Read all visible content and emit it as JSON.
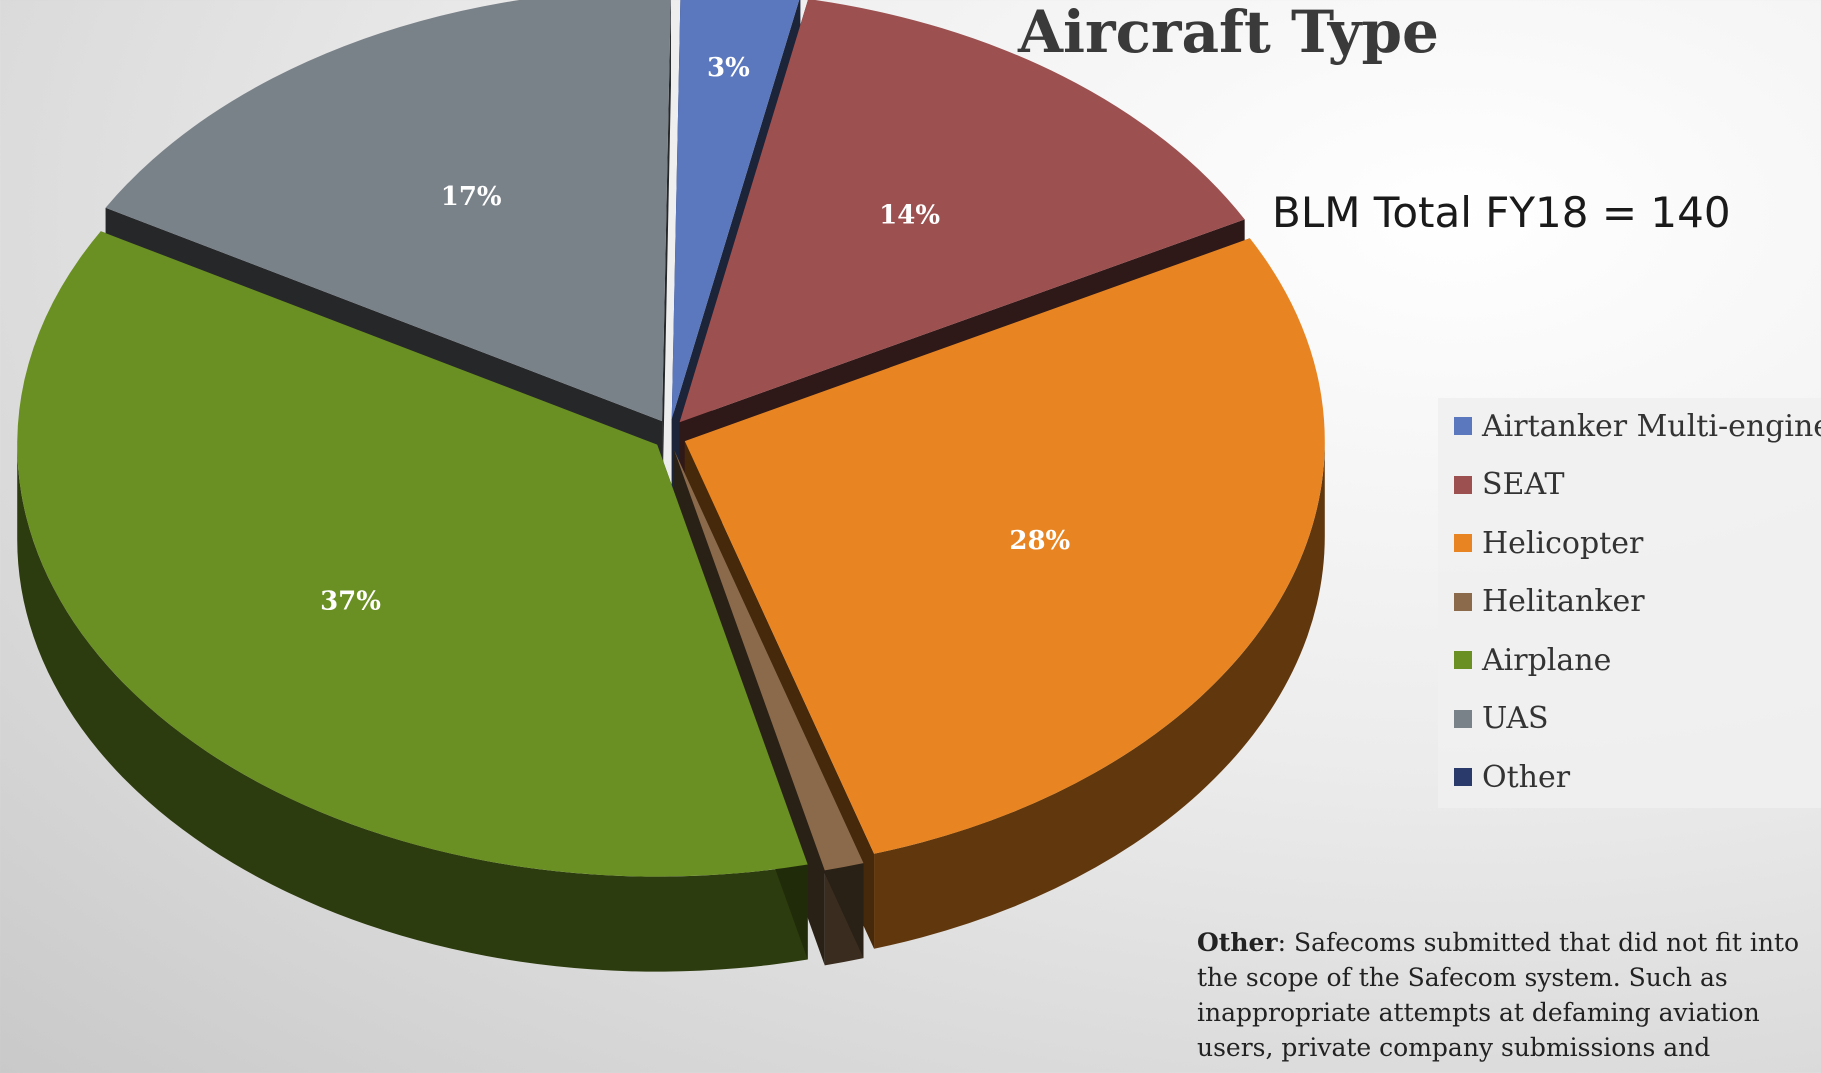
{
  "chart_data": {
    "type": "pie",
    "title": "Aircraft Type",
    "subtitle": "BLM Total FY18 = 140",
    "slices": [
      {
        "name": "Airtanker Multi-engine",
        "value": 3,
        "label": "3%",
        "color": "#5b77bd"
      },
      {
        "name": "SEAT",
        "value": 14,
        "label": "14%",
        "color": "#9d5050"
      },
      {
        "name": "Helicopter",
        "value": 28,
        "label": "28%",
        "color": "#e88522"
      },
      {
        "name": "Helitanker",
        "value": 1,
        "label": "",
        "color": "#8a6a4a"
      },
      {
        "name": "Airplane",
        "value": 37,
        "label": "37%",
        "color": "#6a8f22"
      },
      {
        "name": "UAS",
        "value": 17,
        "label": "17%",
        "color": "#7a8289"
      },
      {
        "name": "Other",
        "value": 0,
        "label": "",
        "color": "#2a3a6a"
      }
    ],
    "legend_position": "right"
  },
  "note": {
    "heading": "Other",
    "text": ": Safecoms submitted that did not fit into the scope of the Safecom system.  Such as inappropriate attempts at defaming aviation users, private company submissions and"
  }
}
